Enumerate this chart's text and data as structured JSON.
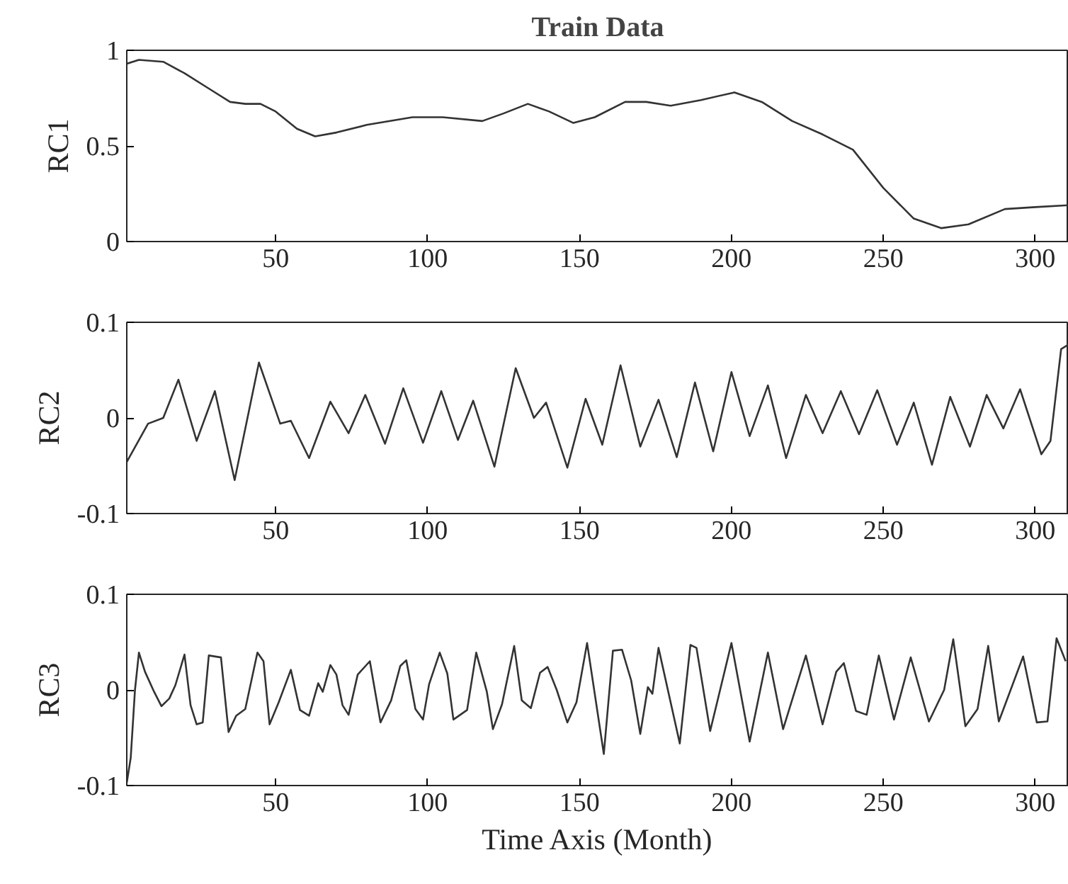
{
  "chart_data": [
    {
      "type": "line",
      "title": "Train Data",
      "ylabel": "RC1",
      "color": "#333333",
      "xlim": [
        1,
        311
      ],
      "ylim": [
        0,
        1
      ],
      "xticks": [
        50,
        100,
        150,
        200,
        250,
        300
      ],
      "yticks": [
        0,
        0.5,
        1
      ],
      "x": [
        1,
        5,
        13,
        20,
        28,
        35,
        40,
        45,
        50,
        57,
        63,
        70,
        80,
        95,
        105,
        118,
        125,
        133,
        140,
        148,
        155,
        165,
        172,
        180,
        190,
        201,
        210,
        220,
        230,
        240,
        250,
        260,
        269,
        278,
        290,
        300,
        311
      ],
      "values": [
        0.93,
        0.95,
        0.94,
        0.88,
        0.8,
        0.73,
        0.72,
        0.72,
        0.68,
        0.59,
        0.55,
        0.57,
        0.61,
        0.65,
        0.65,
        0.63,
        0.67,
        0.72,
        0.68,
        0.62,
        0.65,
        0.73,
        0.73,
        0.71,
        0.74,
        0.78,
        0.73,
        0.63,
        0.56,
        0.48,
        0.28,
        0.12,
        0.07,
        0.09,
        0.17,
        0.18,
        0.19
      ]
    },
    {
      "type": "line",
      "ylabel": "RC2",
      "color": "#333333",
      "xlim": [
        1,
        311
      ],
      "ylim": [
        -0.1,
        0.1
      ],
      "xticks": [
        50,
        100,
        150,
        200,
        250,
        300
      ],
      "yticks": [
        -0.1,
        0,
        0.1
      ],
      "x": [
        1,
        8,
        13,
        18,
        24,
        30,
        36.5,
        44.5,
        51.5,
        55,
        61,
        68,
        74,
        79.5,
        86,
        92,
        98.5,
        104.5,
        110,
        115,
        122,
        129,
        135,
        139,
        146,
        152,
        157.5,
        163.5,
        170,
        176,
        182,
        188,
        194,
        200,
        206,
        212,
        218,
        224.5,
        230,
        236,
        242,
        248,
        254.5,
        260,
        266,
        272,
        278.5,
        284,
        289.5,
        295,
        302,
        305,
        308.5,
        311
      ],
      "values": [
        -0.046,
        -0.006,
        0.0,
        0.04,
        -0.024,
        0.028,
        -0.065,
        0.058,
        -0.006,
        -0.003,
        -0.042,
        0.017,
        -0.016,
        0.024,
        -0.027,
        0.031,
        -0.026,
        0.028,
        -0.023,
        0.018,
        -0.051,
        0.052,
        0.0,
        0.016,
        -0.052,
        0.02,
        -0.028,
        0.055,
        -0.03,
        0.019,
        -0.041,
        0.037,
        -0.035,
        0.048,
        -0.019,
        0.034,
        -0.042,
        0.024,
        -0.016,
        0.028,
        -0.017,
        0.029,
        -0.028,
        0.016,
        -0.049,
        0.022,
        -0.03,
        0.024,
        -0.011,
        0.03,
        -0.038,
        -0.024,
        0.072,
        0.077
      ]
    },
    {
      "type": "line",
      "ylabel": "RC3",
      "xlabel": "Time Axis (Month)",
      "color": "#333333",
      "xlim": [
        1,
        311
      ],
      "ylim": [
        -0.1,
        0.1
      ],
      "xticks": [
        50,
        100,
        150,
        200,
        250,
        300
      ],
      "yticks": [
        -0.1,
        0,
        0.1
      ],
      "x": [
        1,
        2.3,
        3.7,
        5,
        7,
        10,
        12.4,
        15,
        17,
        20,
        22,
        24,
        26,
        28,
        32,
        34.5,
        37,
        40,
        44,
        46,
        48,
        51,
        55,
        58,
        61,
        64,
        65.5,
        68,
        70,
        72,
        74,
        77,
        81,
        84.5,
        88,
        91,
        93,
        96,
        98.5,
        100.5,
        104,
        106.5,
        108.5,
        113,
        116,
        119.5,
        121.5,
        124.5,
        128.5,
        131,
        134,
        137,
        139.5,
        142.5,
        146,
        149,
        152.5,
        158,
        161,
        164,
        167,
        170,
        172.5,
        174,
        176,
        183,
        186.5,
        188.5,
        193,
        200,
        206,
        212,
        217,
        224.5,
        230,
        234.5,
        237,
        241,
        244.5,
        248.5,
        253.5,
        259,
        265,
        270,
        273,
        277,
        281,
        284.5,
        288,
        296,
        300.5,
        304,
        307,
        310
      ],
      "values": [
        -0.097,
        -0.071,
        0.0,
        0.039,
        0.019,
        -0.002,
        -0.017,
        -0.009,
        0.005,
        0.037,
        -0.016,
        -0.036,
        -0.034,
        0.036,
        0.034,
        -0.044,
        -0.027,
        -0.02,
        0.039,
        0.03,
        -0.036,
        -0.013,
        0.021,
        -0.021,
        -0.027,
        0.007,
        -0.002,
        0.026,
        0.016,
        -0.016,
        -0.026,
        0.016,
        0.03,
        -0.034,
        -0.011,
        0.025,
        0.031,
        -0.02,
        -0.031,
        0.006,
        0.039,
        0.017,
        -0.031,
        -0.021,
        0.039,
        -0.002,
        -0.041,
        -0.015,
        0.046,
        -0.011,
        -0.019,
        0.018,
        0.024,
        0.0,
        -0.034,
        -0.013,
        0.049,
        -0.067,
        0.041,
        0.042,
        0.01,
        -0.046,
        0.003,
        -0.004,
        0.044,
        -0.056,
        0.047,
        0.044,
        -0.043,
        0.049,
        -0.054,
        0.039,
        -0.041,
        0.036,
        -0.036,
        0.019,
        0.028,
        -0.022,
        -0.026,
        0.036,
        -0.031,
        0.034,
        -0.033,
        0.0,
        0.053,
        -0.038,
        -0.02,
        0.046,
        -0.033,
        0.035,
        -0.034,
        -0.033,
        0.054,
        0.03
      ]
    }
  ]
}
